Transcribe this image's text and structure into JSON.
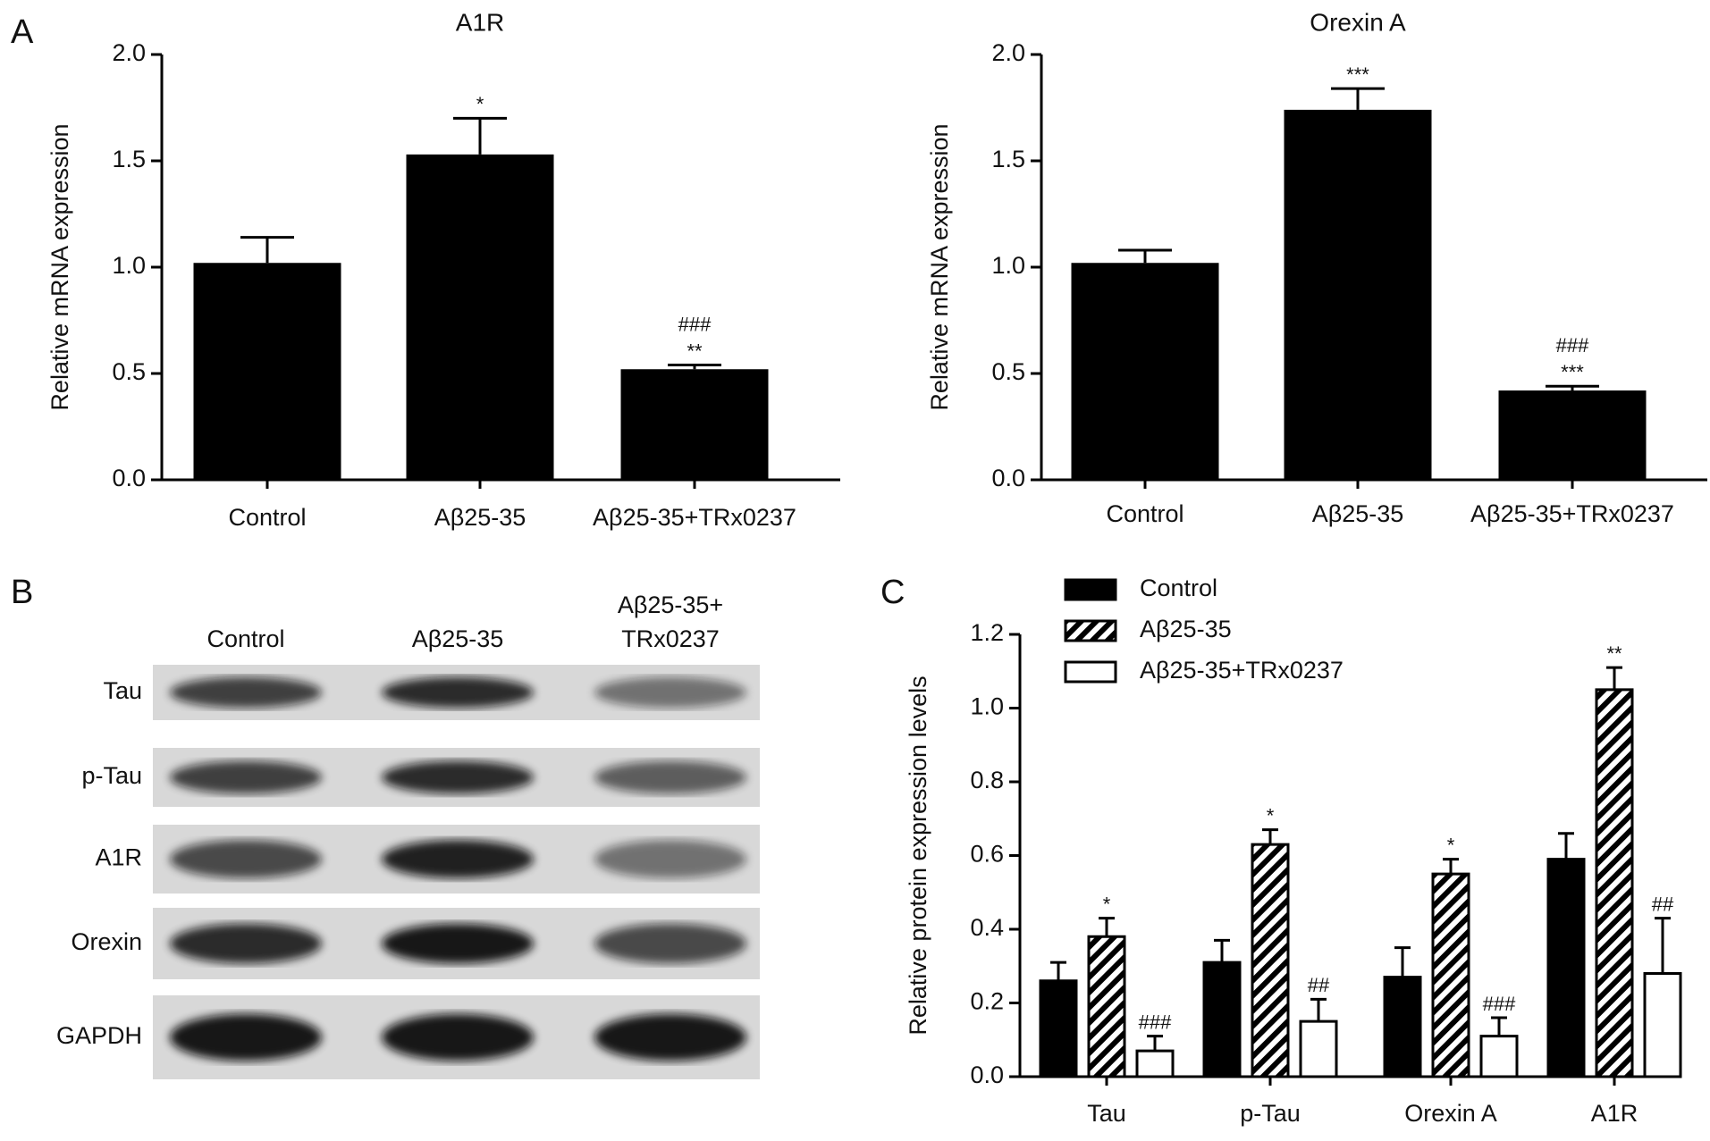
{
  "panel_labels": [
    "A",
    "B",
    "C"
  ],
  "chart_data": [
    {
      "type": "bar",
      "title": "A1R",
      "ylabel": "Relative mRNA expression",
      "categories": [
        "Control",
        "Aβ25-35",
        "Aβ25-35+TRx0237"
      ],
      "values": [
        1.02,
        1.53,
        0.52
      ],
      "errors": [
        0.12,
        0.17,
        0.02
      ],
      "significance": [
        null,
        [
          "*"
        ],
        [
          "###",
          "**"
        ]
      ],
      "color": "#000000",
      "ylim": [
        0,
        2
      ],
      "yticks": [
        {
          "value": 0,
          "label": "0.0"
        },
        {
          "value": 0.5,
          "label": "0.5"
        },
        {
          "value": 1,
          "label": "1.0"
        },
        {
          "value": 1.5,
          "label": "1.5"
        },
        {
          "value": 2,
          "label": "2.0"
        }
      ]
    },
    {
      "type": "bar",
      "title": "Orexin A",
      "ylabel": "Relative mRNA expression",
      "categories": [
        "Control",
        "Aβ25-35",
        "Aβ25-35+TRx0237"
      ],
      "values": [
        1.02,
        1.74,
        0.42
      ],
      "errors": [
        0.06,
        0.1,
        0.02
      ],
      "significance": [
        null,
        [
          "***"
        ],
        [
          "###",
          "***"
        ]
      ],
      "color": "#000000",
      "ylim": [
        0,
        2
      ],
      "yticks": [
        {
          "value": 0,
          "label": "0.0"
        },
        {
          "value": 0.5,
          "label": "0.5"
        },
        {
          "value": 1,
          "label": "1.0"
        },
        {
          "value": 1.5,
          "label": "1.5"
        },
        {
          "value": 2,
          "label": "2.0"
        }
      ]
    },
    {
      "type": "grouped_bar",
      "ylabel": "Relative protein expression levels",
      "categories": [
        "Tau",
        "p-Tau",
        "Orexin A",
        "A1R"
      ],
      "series": [
        {
          "name": "Control",
          "pattern": "solid",
          "color": "#000000",
          "values": [
            0.26,
            0.31,
            0.27,
            0.59
          ],
          "errors": [
            0.05,
            0.06,
            0.08,
            0.07
          ],
          "significance": [
            null,
            null,
            null,
            null
          ]
        },
        {
          "name": "Aβ25-35",
          "pattern": "hatch",
          "color": "#000000",
          "values": [
            0.38,
            0.63,
            0.55,
            1.05
          ],
          "errors": [
            0.05,
            0.04,
            0.04,
            0.06
          ],
          "significance": [
            [
              "*"
            ],
            [
              "*"
            ],
            [
              "*"
            ],
            [
              "**"
            ]
          ]
        },
        {
          "name": "Aβ25-35+TRx0237",
          "pattern": "open",
          "color": "#000000",
          "values": [
            0.07,
            0.15,
            0.11,
            0.28
          ],
          "errors": [
            0.04,
            0.06,
            0.05,
            0.15
          ],
          "significance": [
            [
              "###"
            ],
            [
              "##"
            ],
            [
              "###"
            ],
            [
              "##"
            ]
          ]
        }
      ],
      "ylim": [
        0,
        1.2
      ],
      "yticks": [
        {
          "value": 0,
          "label": "0.0"
        },
        {
          "value": 0.2,
          "label": "0.2"
        },
        {
          "value": 0.4,
          "label": "0.4"
        },
        {
          "value": 0.6,
          "label": "0.6"
        },
        {
          "value": 0.8,
          "label": "0.8"
        },
        {
          "value": 1,
          "label": "1.0"
        },
        {
          "value": 1.2,
          "label": "1.2"
        }
      ]
    }
  ],
  "blot": {
    "lanes": [
      [
        "Control"
      ],
      [
        "Aβ25-35"
      ],
      [
        "Aβ25-35+",
        "TRx0237"
      ]
    ],
    "rows": [
      "Tau",
      "p-Tau",
      "A1R",
      "Orexin",
      "GAPDH"
    ]
  }
}
